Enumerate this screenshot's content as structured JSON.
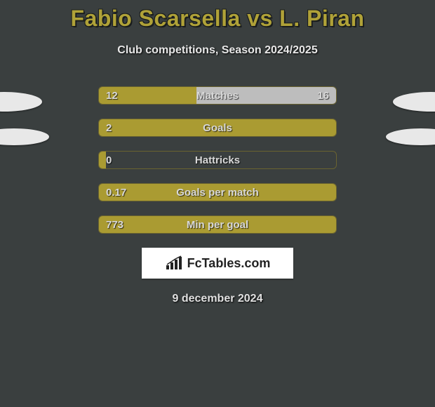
{
  "title": "Fabio Scarsella vs L. Piran",
  "subtitle": "Club competitions, Season 2024/2025",
  "colors": {
    "bar_fill": "#aa9b32",
    "bar_alt": "#bdbdbd",
    "bar_border": "#6a6330",
    "background": "#3a3f3f",
    "title_color": "#b0a238"
  },
  "bars": [
    {
      "metric": "Matches",
      "left_val": "12",
      "right_val": "16",
      "left_pct": 41,
      "right_pct": 59,
      "right_show": true,
      "right_fill": "alt"
    },
    {
      "metric": "Goals",
      "left_val": "2",
      "right_val": "",
      "left_pct": 100,
      "right_pct": 0,
      "right_show": false,
      "right_fill": "none"
    },
    {
      "metric": "Hattricks",
      "left_val": "0",
      "right_val": "",
      "left_pct": 3,
      "right_pct": 0,
      "right_show": false,
      "right_fill": "none"
    },
    {
      "metric": "Goals per match",
      "left_val": "0.17",
      "right_val": "",
      "left_pct": 100,
      "right_pct": 0,
      "right_show": false,
      "right_fill": "none"
    },
    {
      "metric": "Min per goal",
      "left_val": "773",
      "right_val": "",
      "left_pct": 100,
      "right_pct": 0,
      "right_show": false,
      "right_fill": "none"
    }
  ],
  "logo_text": "FcTables.com",
  "date": "9 december 2024"
}
